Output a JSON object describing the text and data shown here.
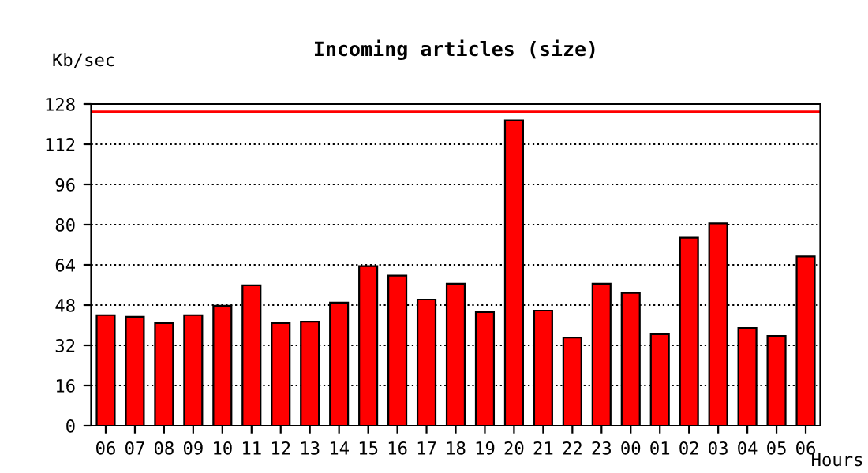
{
  "chart_data": {
    "type": "bar",
    "title": "Incoming articles (size)",
    "ylabel": "Kb/sec",
    "xlabel": "Hours",
    "categories": [
      "06",
      "07",
      "08",
      "09",
      "10",
      "11",
      "12",
      "13",
      "14",
      "15",
      "16",
      "17",
      "18",
      "19",
      "20",
      "21",
      "22",
      "23",
      "00",
      "01",
      "02",
      "03",
      "04",
      "05",
      "06"
    ],
    "values": [
      44,
      43.3,
      40.8,
      44,
      47.7,
      55.9,
      40.8,
      41.4,
      49,
      63.5,
      59.7,
      50.2,
      56.5,
      45.2,
      121.5,
      45.8,
      35.1,
      56.5,
      52.8,
      36.4,
      74.8,
      80.5,
      38.9,
      35.7,
      67.3
    ],
    "color": "#ff0000",
    "ylim": [
      0,
      128
    ],
    "yticks": [
      0,
      16,
      32,
      48,
      64,
      80,
      96,
      112,
      128
    ],
    "grid": "y",
    "line_style": "dotted",
    "ref_lines": [
      {
        "axis": "y",
        "value": 125,
        "color": "#ff0000"
      }
    ]
  }
}
